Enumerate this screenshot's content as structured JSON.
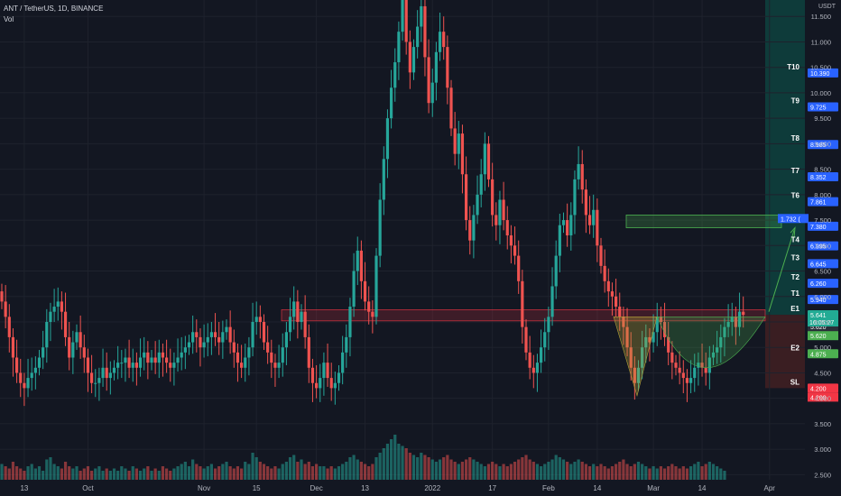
{
  "header": {
    "symbol_line": "ANT / TetherUS, 1D, BINANCE",
    "indicator": "Vol",
    "unit": "USDT"
  },
  "colors": {
    "background": "#131722",
    "up": "#26a69a",
    "down": "#ef5350",
    "grid": "#1e222d",
    "target_zone": "#0e3b3a",
    "target_label": "#2962ff",
    "stop_label": "#f23645",
    "entry_label": "#22ab94",
    "e2_label": "#4caf50",
    "resistance_band": "#f2364533",
    "pattern_fill": "#b4a13a55",
    "arrow": "#4caf50"
  },
  "chart_data": {
    "type": "candlestick",
    "title": "ANT / TetherUS, 1D, BINANCE",
    "ylim": [
      2.4,
      12.0
    ],
    "y_ticks": [
      "11.500",
      "11.000",
      "10.500",
      "10.000",
      "9.500",
      "9.000",
      "8.500",
      "8.000",
      "7.500",
      "7.000",
      "6.500",
      "6.000",
      "5.500",
      "5.000",
      "4.500",
      "4.000",
      "3.500",
      "3.000",
      "2.500"
    ],
    "x_labels": [
      {
        "label": "13",
        "day": 6
      },
      {
        "label": "Oct",
        "day": 23
      },
      {
        "label": "Nov",
        "day": 54
      },
      {
        "label": "15",
        "day": 68
      },
      {
        "label": "Dec",
        "day": 84
      },
      {
        "label": "13",
        "day": 97
      },
      {
        "label": "2022",
        "day": 115
      },
      {
        "label": "17",
        "day": 131
      },
      {
        "label": "Feb",
        "day": 146
      },
      {
        "label": "14",
        "day": 159
      },
      {
        "label": "Mar",
        "day": 174
      },
      {
        "label": "14",
        "day": 187
      },
      {
        "label": "Apr",
        "day": 205
      }
    ],
    "close_series": [
      5.9,
      5.6,
      5.2,
      4.8,
      4.5,
      4.3,
      4.2,
      4.4,
      4.5,
      4.6,
      4.8,
      5.0,
      5.5,
      5.7,
      5.8,
      5.9,
      5.7,
      5.2,
      4.8,
      5.1,
      5.3,
      5.0,
      4.8,
      4.5,
      4.3,
      4.3,
      4.4,
      4.6,
      4.4,
      4.5,
      4.6,
      4.7,
      4.7,
      4.8,
      4.6,
      4.7,
      4.6,
      4.8,
      4.9,
      4.7,
      4.8,
      4.7,
      4.9,
      4.8,
      4.7,
      4.6,
      4.7,
      4.8,
      4.9,
      5.0,
      5.1,
      5.3,
      5.2,
      5.0,
      5.1,
      5.2,
      5.3,
      5.2,
      5.1,
      5.3,
      5.4,
      5.1,
      4.9,
      4.7,
      4.6,
      4.8,
      5.0,
      5.5,
      5.6,
      5.5,
      5.1,
      4.9,
      4.7,
      4.6,
      4.7,
      5.0,
      5.3,
      5.6,
      5.9,
      5.5,
      5.7,
      5.2,
      4.6,
      4.3,
      4.2,
      4.4,
      4.7,
      4.4,
      4.2,
      4.3,
      4.5,
      4.9,
      5.2,
      5.8,
      6.5,
      6.9,
      6.3,
      5.9,
      5.7,
      5.6,
      6.8,
      7.9,
      8.7,
      9.5,
      10.1,
      10.6,
      11.2,
      12.0,
      11.0,
      10.4,
      10.9,
      11.3,
      11.7,
      10.7,
      9.8,
      10.2,
      10.8,
      11.2,
      10.9,
      10.1,
      9.3,
      8.8,
      9.2,
      8.4,
      7.5,
      7.1,
      7.6,
      8.0,
      8.4,
      9.0,
      8.3,
      7.6,
      7.4,
      7.9,
      7.5,
      7.2,
      7.0,
      6.8,
      6.3,
      5.4,
      4.9,
      4.6,
      4.5,
      4.7,
      5.0,
      5.3,
      5.6,
      6.2,
      6.8,
      7.4,
      7.5,
      7.2,
      7.6,
      8.3,
      8.6,
      8.1,
      7.6,
      7.4,
      7.7,
      7.0,
      6.6,
      6.3,
      6.1,
      6.0,
      5.8,
      5.6,
      5.4,
      5.0,
      4.6,
      4.3,
      4.6,
      5.0,
      5.2,
      5.1,
      5.3,
      5.6,
      5.5,
      5.2,
      4.9,
      4.7,
      4.6,
      4.5,
      4.4,
      4.3,
      4.4,
      4.6,
      4.7,
      4.6,
      4.5,
      4.8,
      4.9,
      5.0,
      5.2,
      5.4,
      5.5,
      5.6,
      5.4,
      5.7,
      5.64
    ],
    "volume_relative": [
      0.35,
      0.3,
      0.25,
      0.4,
      0.3,
      0.25,
      0.2,
      0.3,
      0.35,
      0.25,
      0.3,
      0.2,
      0.45,
      0.5,
      0.35,
      0.3,
      0.25,
      0.4,
      0.3,
      0.25,
      0.3,
      0.2,
      0.25,
      0.3,
      0.2,
      0.25,
      0.3,
      0.2,
      0.25,
      0.2,
      0.25,
      0.2,
      0.3,
      0.25,
      0.2,
      0.3,
      0.25,
      0.2,
      0.25,
      0.3,
      0.2,
      0.25,
      0.2,
      0.3,
      0.25,
      0.2,
      0.25,
      0.3,
      0.35,
      0.4,
      0.3,
      0.45,
      0.35,
      0.3,
      0.25,
      0.3,
      0.35,
      0.25,
      0.3,
      0.35,
      0.4,
      0.3,
      0.25,
      0.3,
      0.25,
      0.4,
      0.35,
      0.6,
      0.5,
      0.4,
      0.35,
      0.3,
      0.25,
      0.3,
      0.25,
      0.35,
      0.4,
      0.5,
      0.55,
      0.4,
      0.45,
      0.35,
      0.4,
      0.3,
      0.35,
      0.3,
      0.3,
      0.25,
      0.3,
      0.25,
      0.3,
      0.35,
      0.4,
      0.5,
      0.55,
      0.45,
      0.4,
      0.35,
      0.3,
      0.35,
      0.5,
      0.6,
      0.7,
      0.8,
      0.9,
      1.0,
      0.8,
      0.75,
      0.7,
      0.6,
      0.55,
      0.5,
      0.6,
      0.55,
      0.5,
      0.45,
      0.4,
      0.45,
      0.5,
      0.55,
      0.45,
      0.4,
      0.35,
      0.4,
      0.45,
      0.5,
      0.45,
      0.4,
      0.35,
      0.3,
      0.35,
      0.4,
      0.35,
      0.3,
      0.35,
      0.3,
      0.35,
      0.4,
      0.45,
      0.5,
      0.55,
      0.45,
      0.4,
      0.35,
      0.3,
      0.35,
      0.4,
      0.45,
      0.55,
      0.5,
      0.45,
      0.4,
      0.35,
      0.4,
      0.45,
      0.4,
      0.35,
      0.3,
      0.35,
      0.3,
      0.35,
      0.3,
      0.25,
      0.3,
      0.35,
      0.4,
      0.45,
      0.35,
      0.3,
      0.35,
      0.4,
      0.35,
      0.3,
      0.25,
      0.3,
      0.25,
      0.3,
      0.25,
      0.3,
      0.35,
      0.3,
      0.25,
      0.3,
      0.25,
      0.3,
      0.35,
      0.4,
      0.3,
      0.35,
      0.4,
      0.35,
      0.3,
      0.25,
      0.2
    ],
    "levels": [
      {
        "name": "T10",
        "price": 10.39,
        "label": "10.390",
        "kind": "target"
      },
      {
        "name": "T9",
        "price": 9.725,
        "label": "9.725",
        "kind": "target"
      },
      {
        "name": "T8",
        "price": 8.985,
        "label": "8.985",
        "kind": "target"
      },
      {
        "name": "T7",
        "price": 8.352,
        "label": "8.352",
        "kind": "target"
      },
      {
        "name": "T6",
        "price": 7.861,
        "label": "7.861",
        "kind": "target"
      },
      {
        "name": "T5",
        "price": 7.38,
        "label": "7.380",
        "kind": "target"
      },
      {
        "name": "T4",
        "price": 6.995,
        "label": "6.995",
        "kind": "target"
      },
      {
        "name": "T3",
        "price": 6.645,
        "label": "6.645",
        "kind": "target"
      },
      {
        "name": "T2",
        "price": 6.26,
        "label": "6.260",
        "kind": "target"
      },
      {
        "name": "T1",
        "price": 5.94,
        "label": "5.940",
        "kind": "target"
      },
      {
        "name": "E1",
        "price": 5.641,
        "label": "5.641",
        "kind": "entry"
      },
      {
        "name": "E2",
        "price": 4.875,
        "label": "4.875",
        "kind": "e2"
      },
      {
        "name": "SL",
        "price": 4.2,
        "label": "4.200",
        "kind": "stop"
      }
    ],
    "extra_price_labels": [
      {
        "price": 5.62,
        "label": "5.620",
        "kind": "dark"
      },
      {
        "price": 5.62,
        "label": "5.620",
        "kind": "e2"
      },
      {
        "price": 4.2,
        "label": "4.200",
        "kind": "stop"
      }
    ],
    "countdown": "16:05:27",
    "annotation": "1.732 (",
    "green_box": {
      "price_low": 7.35,
      "price_high": 7.6
    },
    "resistance_band": {
      "price_low": 5.52,
      "price_high": 5.74
    }
  }
}
